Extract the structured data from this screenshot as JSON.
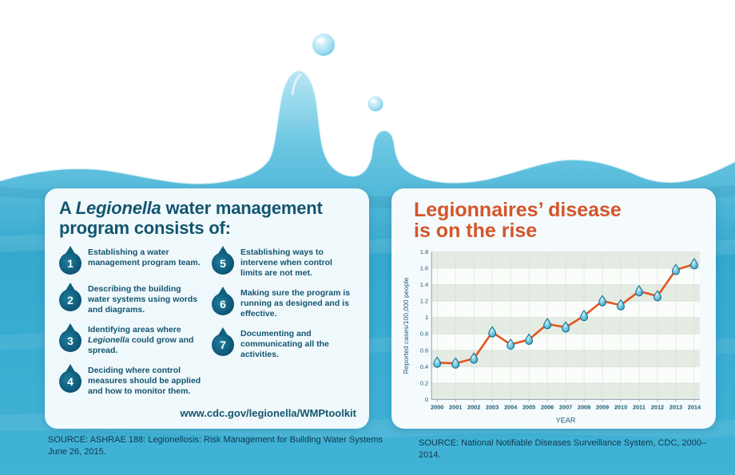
{
  "left_panel": {
    "title": {
      "t1": "A ",
      "it": "Legionella",
      "t2": " water management program consists of:"
    },
    "items": [
      {
        "num": "1",
        "t1": "Establishing a water management program team."
      },
      {
        "num": "2",
        "t1": "Describing the building water systems using words and diagrams."
      },
      {
        "num": "3",
        "t1": "Identifying areas where ",
        "it": "Legionella",
        "t2": " could grow and spread."
      },
      {
        "num": "4",
        "t1": "Deciding where control measures should be applied and how to monitor them."
      },
      {
        "num": "5",
        "t1": "Establishing ways to intervene when control limits are not met."
      },
      {
        "num": "6",
        "t1": "Making sure the program is running as designed and is effective."
      },
      {
        "num": "7",
        "t1": "Documenting and communicating all the activities."
      }
    ],
    "url": "www.cdc.gov/legionella/WMPtoolkit"
  },
  "right_panel": {
    "title_line1": "Legionnaires’ disease",
    "title_line2": "is on the rise"
  },
  "chart_data": {
    "type": "line",
    "title": "Legionnaires’ disease is on the rise",
    "x": [
      2000,
      2001,
      2002,
      2003,
      2004,
      2005,
      2006,
      2007,
      2008,
      2009,
      2010,
      2011,
      2012,
      2013,
      2014
    ],
    "values": [
      0.45,
      0.44,
      0.5,
      0.82,
      0.67,
      0.73,
      0.92,
      0.88,
      1.02,
      1.2,
      1.15,
      1.32,
      1.26,
      1.58,
      1.65
    ],
    "xlabel": "YEAR",
    "ylabel": "Reported cases/100,000 people",
    "ylim": [
      0,
      1.8
    ],
    "ytick_step": 0.2,
    "yticks": [
      "0",
      "0.2",
      "0.4",
      "0.6",
      "0.8",
      "1",
      "1.2",
      "1.4",
      "1.6",
      "1.8"
    ],
    "grid": "horizontal-bands",
    "legend": "none",
    "line_color": "#E2571F",
    "marker": "water-drop",
    "marker_color": "#3FA3C4"
  },
  "sources": {
    "left": "SOURCE: ASHRAE 188: Legionellosis: Risk Management for Building Water Systems\nJune 26, 2015.",
    "right": "SOURCE: National Notifiable Diseases Surveillance System, CDC, 2000–2014."
  },
  "colors": {
    "navy_text": "#14556F",
    "orange_accent": "#D4552A",
    "water_blue": "#35A8CE",
    "drop_icon_teal": "#0C5270"
  }
}
